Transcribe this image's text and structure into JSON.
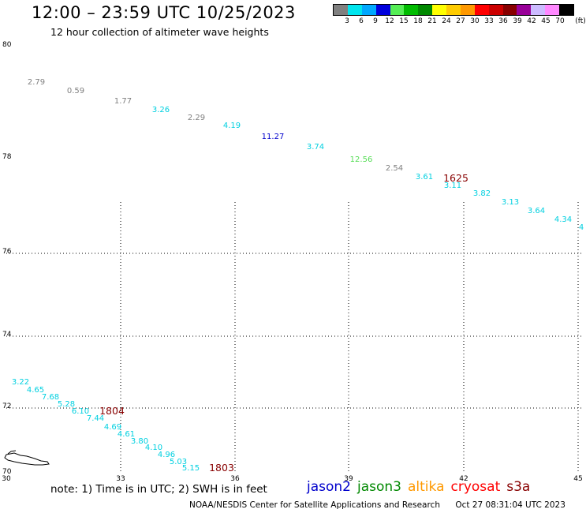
{
  "header": {
    "title": "12:00 – 23:59 UTC 10/25/2023",
    "subtitle": "12 hour collection of altimeter wave heights"
  },
  "legend": {
    "unit": "(ft)",
    "colors": [
      "#808080",
      "#00e5ee",
      "#00a8ff",
      "#0000dd",
      "#55ee55",
      "#00bb00",
      "#008800",
      "#ffff00",
      "#ffcc00",
      "#ff9900",
      "#ff0000",
      "#cc0000",
      "#880000",
      "#990099",
      "#ccbbff",
      "#ff88ff",
      "#000000"
    ],
    "labels": [
      "3",
      "6",
      "9",
      "12",
      "15",
      "18",
      "21",
      "24",
      "27",
      "30",
      "33",
      "36",
      "39",
      "42",
      "45",
      "70"
    ]
  },
  "map": {
    "lat_labels": [
      "80",
      "78",
      "76",
      "74",
      "72",
      "70"
    ],
    "lon_labels": [
      "30",
      "33",
      "36",
      "39",
      "42",
      "45"
    ],
    "track_north": [
      {
        "label": "2.79",
        "color": "#808080"
      },
      {
        "label": "0.59",
        "color": "#808080"
      },
      {
        "label": "1.77",
        "color": "#808080"
      },
      {
        "label": "3.26",
        "color": "#00d0e0"
      },
      {
        "label": "2.29",
        "color": "#808080"
      },
      {
        "label": "4.19",
        "color": "#00d0e0"
      },
      {
        "label": "11.27",
        "color": "#0000cc"
      },
      {
        "label": "3.74",
        "color": "#00d0e0"
      },
      {
        "label": "12.56",
        "color": "#55dd55"
      },
      {
        "label": "2.54",
        "color": "#808080"
      },
      {
        "label": "3.61",
        "color": "#00d0e0"
      },
      {
        "label": "3.11",
        "color": "#00d0e0"
      },
      {
        "label": "3.82",
        "color": "#00d0e0"
      },
      {
        "label": "3.13",
        "color": "#00d0e0"
      },
      {
        "label": "3.64",
        "color": "#00d0e0"
      },
      {
        "label": "4.34",
        "color": "#00d0e0"
      },
      {
        "label": "4",
        "color": "#00d0e0"
      }
    ],
    "track_south": [
      {
        "label": "3.22",
        "color": "#00d0e0"
      },
      {
        "label": "4.65",
        "color": "#00d0e0"
      },
      {
        "label": "7.68",
        "color": "#00d0e0"
      },
      {
        "label": "5.28",
        "color": "#00d0e0"
      },
      {
        "label": "6.10",
        "color": "#00d0e0"
      },
      {
        "label": "7.44",
        "color": "#00d0e0"
      },
      {
        "label": "4.69",
        "color": "#00d0e0"
      },
      {
        "label": "4.61",
        "color": "#00d0e0"
      },
      {
        "label": "3.80",
        "color": "#00d0e0"
      },
      {
        "label": "4.10",
        "color": "#00d0e0"
      },
      {
        "label": "4.96",
        "color": "#00d0e0"
      },
      {
        "label": "5.03",
        "color": "#00d0e0"
      },
      {
        "label": "5.15",
        "color": "#00d0e0"
      }
    ],
    "time_labels": [
      {
        "label": "1625",
        "color": "#880000"
      },
      {
        "label": "1804",
        "color": "#880000"
      },
      {
        "label": "1803",
        "color": "#880000"
      }
    ]
  },
  "footer": {
    "note": "note: 1) Time is in UTC; 2) SWH is in feet",
    "satellites": [
      {
        "name": "jason2",
        "color": "#0000cc"
      },
      {
        "name": "jason3",
        "color": "#008800"
      },
      {
        "name": "altika",
        "color": "#ff9900"
      },
      {
        "name": "cryosat",
        "color": "#ff0000"
      },
      {
        "name": "s3a",
        "color": "#880000"
      }
    ],
    "credit": "NOAA/NESDIS Center for Satellite Applications and Research",
    "timestamp": "Oct 27 08:31:04 UTC 2023"
  }
}
